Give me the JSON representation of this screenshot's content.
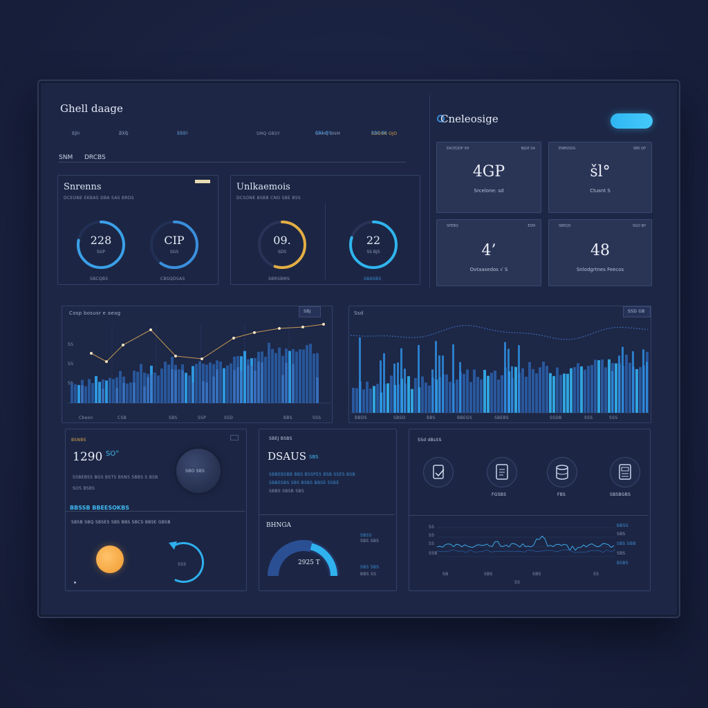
{
  "header": {
    "title": "Ghell daage",
    "nav": [
      "BJH",
      "ZXQ",
      "SSO",
      "SMQ GBSY",
      "GAHQ BNM",
      "SDOSN OJO"
    ],
    "sub_tabs": [
      "SNM",
      "DRCBS"
    ]
  },
  "right_header": {
    "title": "Cneleosige",
    "kpis": [
      {
        "label_l": "EACEQDP SH",
        "label_r": "BJGE SA",
        "value": "4GP",
        "sub": "Srcelone: sd"
      },
      {
        "label_l": "ENBSSDG",
        "label_r": "SBS QP",
        "value": "šl°",
        "sub": "Ctusnt S"
      },
      {
        "label_l": "SPEBQ",
        "label_r": "ESM",
        "value": "4’",
        "sub": "Ovtaasedos  √  S"
      },
      {
        "label_l": "SBEQD",
        "label_r": "SGO BP",
        "value": "48",
        "sub": "Snlodgrtnes Feecos"
      }
    ]
  },
  "panel_rings_1": {
    "title": "Snrenns",
    "caption": "DCEONE EKBAS  DBA SAS BRDS",
    "rings": [
      {
        "value": "228",
        "sub": "SGP",
        "level": 0.78,
        "color": "#3ba0e8"
      },
      {
        "value": "CIP",
        "sub": "SGS",
        "level": 0.6,
        "color": "#3a8fdc"
      }
    ],
    "footer": [
      "SBCQBS",
      "CBSQDSAS"
    ]
  },
  "panel_rings_2": {
    "title": "Unlkaemois",
    "caption": "DCSONE BSBB CNO SBE BSS",
    "rings": [
      {
        "value": "09.",
        "sub": "SDS",
        "level": 0.55,
        "color": "#e3ae43"
      },
      {
        "value": "22",
        "sub": "SS BJS",
        "level": 0.8,
        "color": "#2fb5ee"
      }
    ],
    "footer": [
      "SBRSBMS",
      "SBASBS"
    ]
  },
  "chart_left": {
    "title": "Cosp bosusr e aeag",
    "badge": "SBJ",
    "y_ticks": [
      "SS",
      "SS",
      "SS"
    ],
    "x_ticks": [
      "Cbeon",
      "CSB",
      "SBS",
      "SSP",
      "SSD",
      "BBS",
      "SSS"
    ]
  },
  "chart_right": {
    "title": "Ssd",
    "badge": "SSD GB",
    "x_ticks": [
      "BBDS",
      "SBSD",
      "BBS",
      "BBEGS",
      "SBEBS",
      "SSDB",
      "SSS",
      "SSS"
    ]
  },
  "panel_bottom_left": {
    "label": "BSNBS",
    "big": "1290",
    "small": "SO°",
    "lines": [
      "SSBEBSS BGS BSTS BSNS SBBS S BSB",
      "SOS BSBS"
    ],
    "orb_label": "SBO SBS",
    "section": "BBSSB BBEESOKBS",
    "section_caption": "SBSB SBQ SBSES SBS BBS SBCS BBSE GBSB"
  },
  "panel_bottom_mid": {
    "label": "SBEJ BSBS",
    "big": "DSAUS",
    "small": "SBS",
    "lines": [
      "SBBEBSBB BBS BSSPES BSB SSES BSB",
      "SBBESBS SBS BSBS BBSE SSBE",
      "SBBS SBSB SBS"
    ],
    "gauge_title": "BHNGA",
    "gauge_value": "2925 T",
    "gauge_level": 0.58,
    "gauge_legend": [
      "SBSS",
      "SBS SBS",
      "SBS SBS",
      "BBS SS"
    ]
  },
  "panel_bottom_right": {
    "label": "SSd dBsSS",
    "icons": [
      {
        "name": "clipboard-icon",
        "label": ""
      },
      {
        "name": "document-icon",
        "label": "FGSBS"
      },
      {
        "name": "database-icon",
        "label": "FBS"
      },
      {
        "name": "report-icon",
        "label": "SBSBGBS"
      }
    ],
    "legend": [
      "BBSS",
      "SBS",
      "SBS SBB",
      "SBS",
      "BSBS"
    ],
    "y_ticks": [
      "SS",
      "SS",
      "SS",
      "SSB"
    ],
    "x_ticks": [
      "SB",
      "SBS",
      "SBS",
      "SS"
    ],
    "footer": "SS"
  }
}
